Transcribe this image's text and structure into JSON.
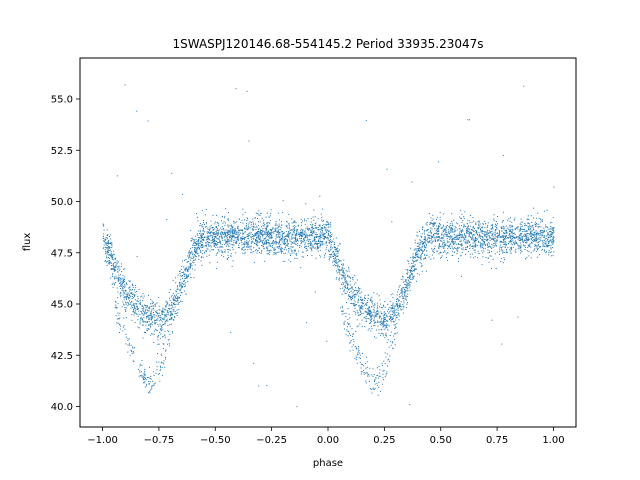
{
  "chart_data": {
    "type": "scatter",
    "title": "1SWASPJ120146.68-554145.2 Period 33935.23047s",
    "xlabel": "phase",
    "ylabel": "flux",
    "xlim": [
      -1.1,
      1.1
    ],
    "ylim": [
      39.0,
      57.0
    ],
    "xticks": [
      -1.0,
      -0.75,
      -0.5,
      -0.25,
      0.0,
      0.25,
      0.5,
      0.75,
      1.0
    ],
    "xtick_labels": [
      "−1.00",
      "−0.75",
      "−0.50",
      "−0.25",
      "0.00",
      "0.25",
      "0.50",
      "0.75",
      "1.00"
    ],
    "yticks": [
      40.0,
      42.5,
      45.0,
      47.5,
      50.0,
      52.5,
      55.0
    ],
    "ytick_labels": [
      "40.0",
      "42.5",
      "45.0",
      "47.5",
      "50.0",
      "52.5",
      "55.0"
    ],
    "grid": false,
    "marker_color": "#1f77b4",
    "series": [
      {
        "description_points": [
          {
            "x": -1.0,
            "y": 48.3
          },
          {
            "x": -0.95,
            "y": 46.8
          },
          {
            "x": -0.9,
            "y": 45.6
          },
          {
            "x": -0.85,
            "y": 44.9
          },
          {
            "x": -0.8,
            "y": 44.4
          },
          {
            "x": -0.75,
            "y": 44.2
          },
          {
            "x": -0.7,
            "y": 44.6
          },
          {
            "x": -0.65,
            "y": 46.0
          },
          {
            "x": -0.6,
            "y": 47.6
          },
          {
            "x": -0.55,
            "y": 48.3
          },
          {
            "x": -0.5,
            "y": 48.3
          },
          {
            "x": -0.25,
            "y": 48.3
          },
          {
            "x": 0.0,
            "y": 48.3
          },
          {
            "x": 0.05,
            "y": 46.8
          },
          {
            "x": 0.1,
            "y": 45.6
          },
          {
            "x": 0.15,
            "y": 44.9
          },
          {
            "x": 0.2,
            "y": 44.4
          },
          {
            "x": 0.25,
            "y": 44.2
          },
          {
            "x": 0.3,
            "y": 44.6
          },
          {
            "x": 0.35,
            "y": 46.0
          },
          {
            "x": 0.4,
            "y": 47.6
          },
          {
            "x": 0.45,
            "y": 48.3
          },
          {
            "x": 0.5,
            "y": 48.3
          },
          {
            "x": 0.75,
            "y": 48.3
          },
          {
            "x": 1.0,
            "y": 48.3
          }
        ],
        "secondary_branch_points": [
          {
            "x": -0.95,
            "y": 45.0
          },
          {
            "x": -0.9,
            "y": 43.5
          },
          {
            "x": -0.85,
            "y": 42.0
          },
          {
            "x": -0.8,
            "y": 41.2
          },
          {
            "x": -0.75,
            "y": 41.8
          },
          {
            "x": -0.7,
            "y": 43.5
          },
          {
            "x": 0.05,
            "y": 45.0
          },
          {
            "x": 0.1,
            "y": 43.5
          },
          {
            "x": 0.15,
            "y": 42.0
          },
          {
            "x": 0.2,
            "y": 41.2
          },
          {
            "x": 0.25,
            "y": 41.8
          },
          {
            "x": 0.3,
            "y": 43.5
          }
        ],
        "baseline_flux": 48.3,
        "flux_min": 39.8,
        "flux_max": 56.4
      }
    ]
  }
}
